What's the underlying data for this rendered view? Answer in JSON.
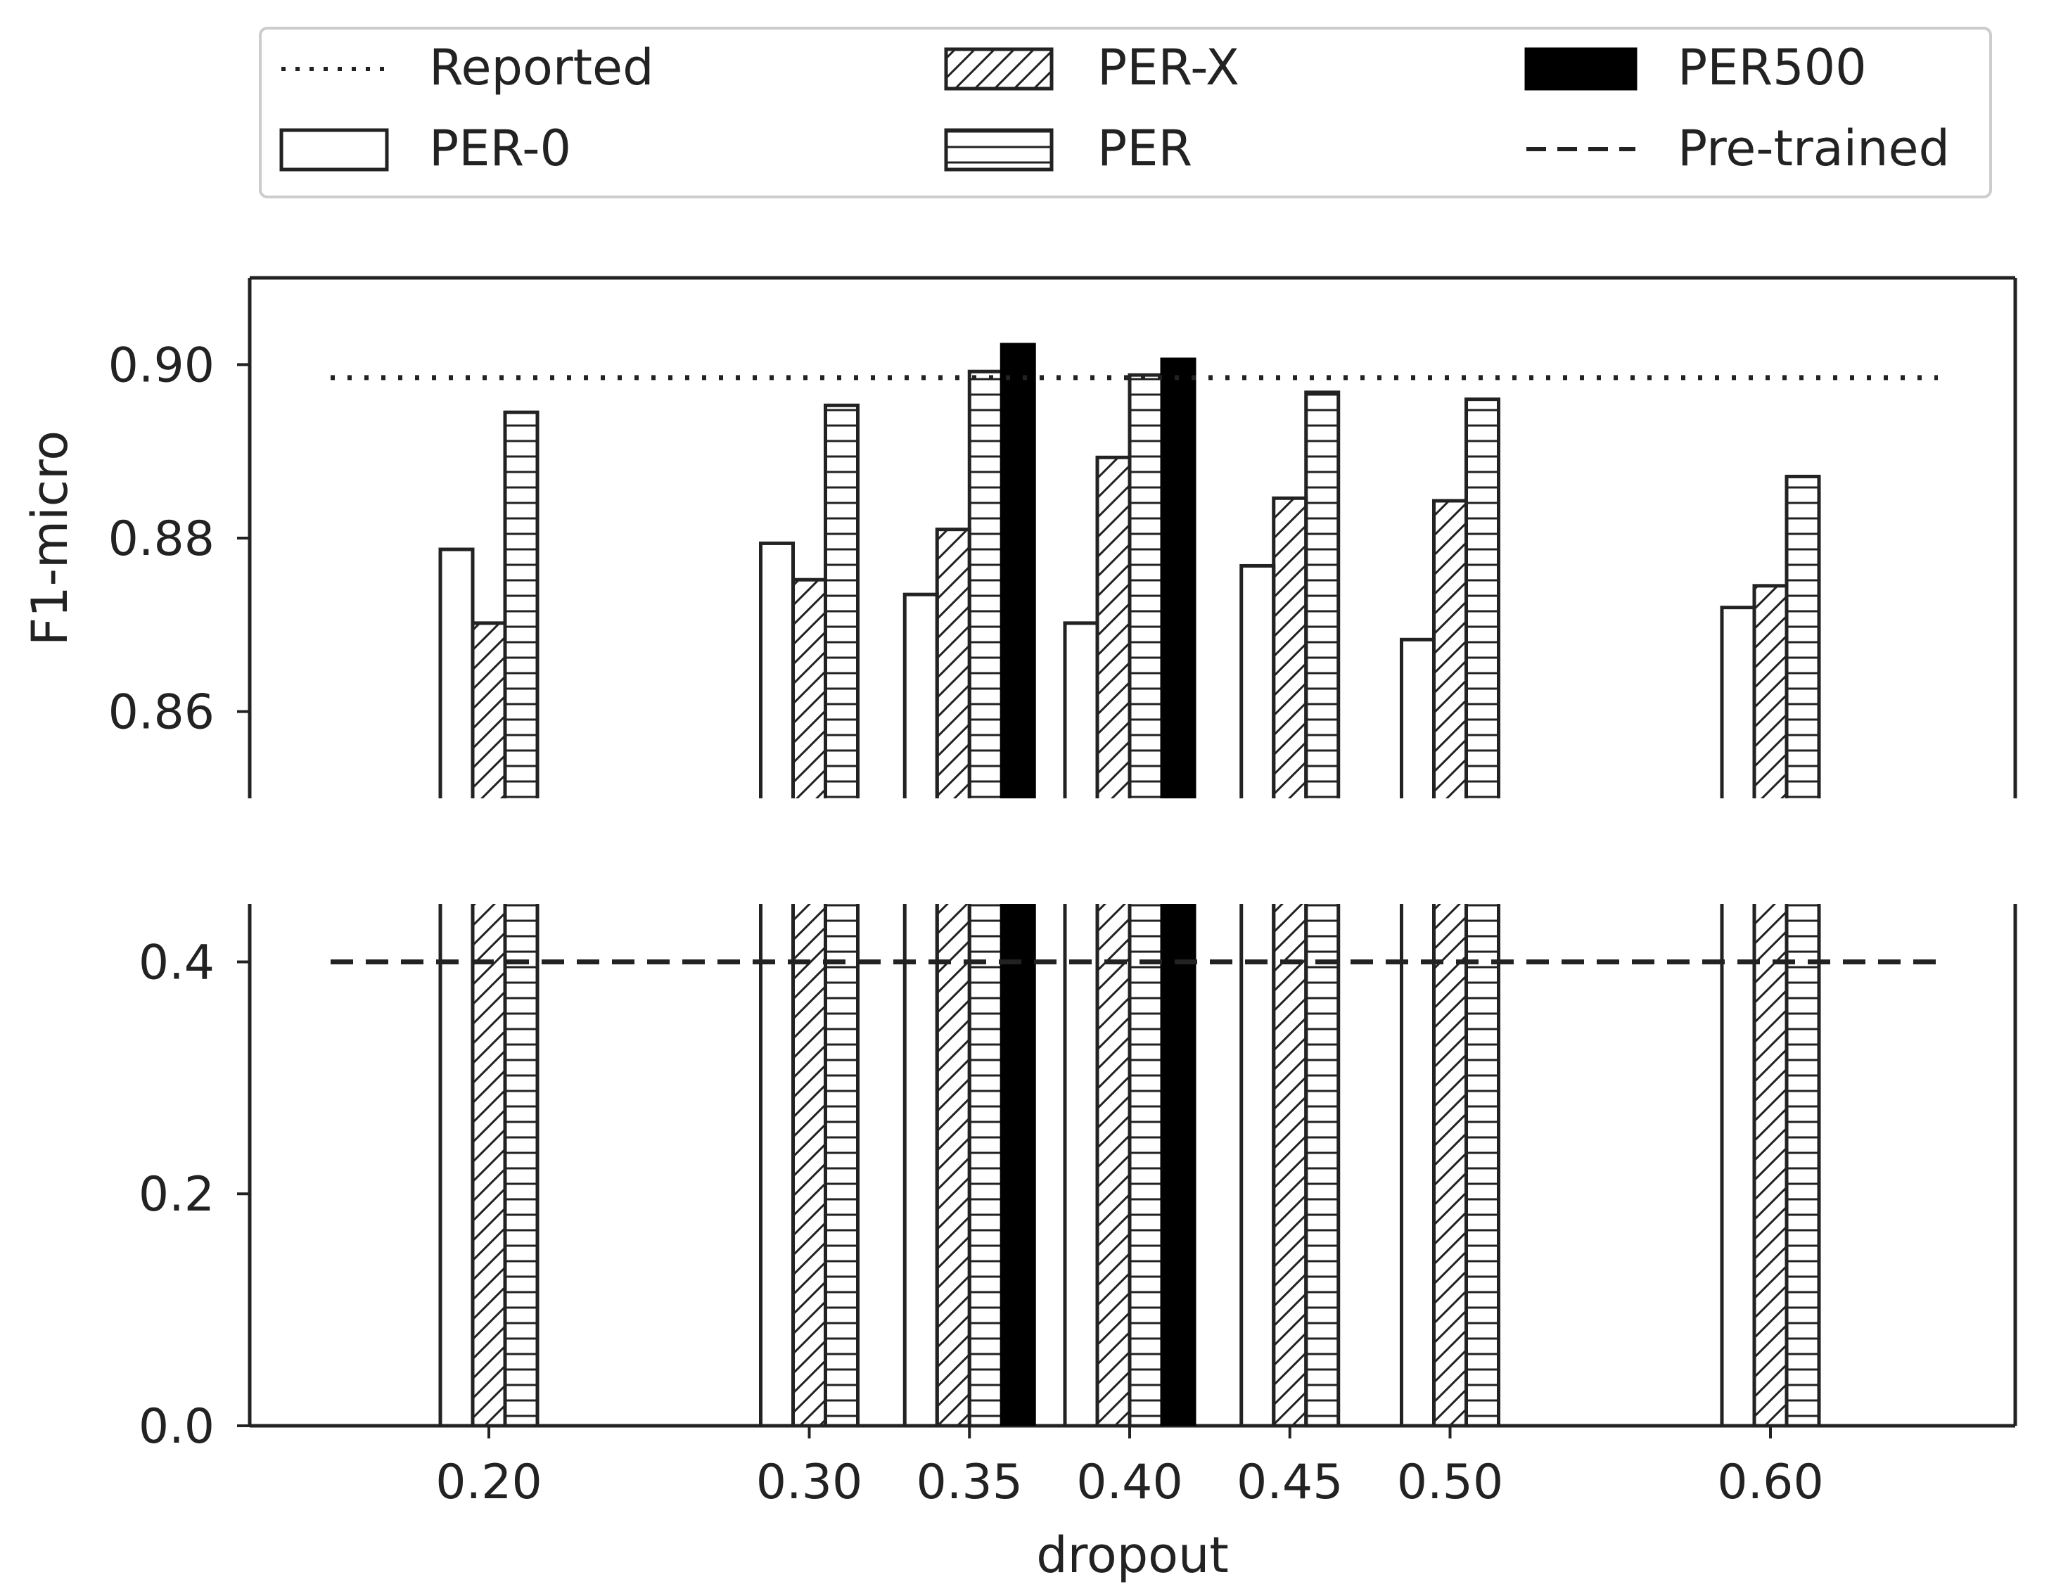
{
  "chart_data": {
    "type": "bar",
    "broken_axis": true,
    "categories": [
      "0.20",
      "0.30",
      "0.35",
      "0.40",
      "0.45",
      "0.50",
      "0.60"
    ],
    "x": [
      0.2,
      0.3,
      0.35,
      0.4,
      0.45,
      0.5,
      0.6
    ],
    "xlabel": "dropout",
    "ylabel": "F1-micro",
    "ylim_upper": [
      0.85,
      0.91
    ],
    "ylim_lower": [
      0.0,
      0.45
    ],
    "yticks_upper": [
      "0.86",
      "0.88",
      "0.90"
    ],
    "yticks_lower": [
      "0.0",
      "0.2",
      "0.4"
    ],
    "series": [
      {
        "name": "PER-0",
        "style": "open",
        "values": [
          0.8787,
          0.8794,
          0.8735,
          0.8702,
          0.8768,
          0.8683,
          0.872
        ]
      },
      {
        "name": "PER-X",
        "style": "diagonal-hatch",
        "values": [
          0.8702,
          0.8752,
          0.881,
          0.8893,
          0.8846,
          0.8843,
          0.8745
        ]
      },
      {
        "name": "PER",
        "style": "horizontal-hatch",
        "values": [
          0.8945,
          0.8953,
          0.8992,
          0.8988,
          0.8968,
          0.896,
          0.8871
        ]
      },
      {
        "name": "PER500",
        "style": "solid-black",
        "values": [
          null,
          null,
          0.9023,
          0.9006,
          null,
          null,
          null
        ]
      }
    ],
    "reference_lines": [
      {
        "name": "Reported",
        "style": "dotted",
        "value": 0.8985
      },
      {
        "name": "Pre-trained",
        "style": "dashed",
        "value": 0.4
      }
    ],
    "legend": {
      "position": "top",
      "entries": [
        "Reported",
        "PER-X",
        "PER500",
        "PER-0",
        "PER",
        "Pre-trained"
      ]
    }
  }
}
